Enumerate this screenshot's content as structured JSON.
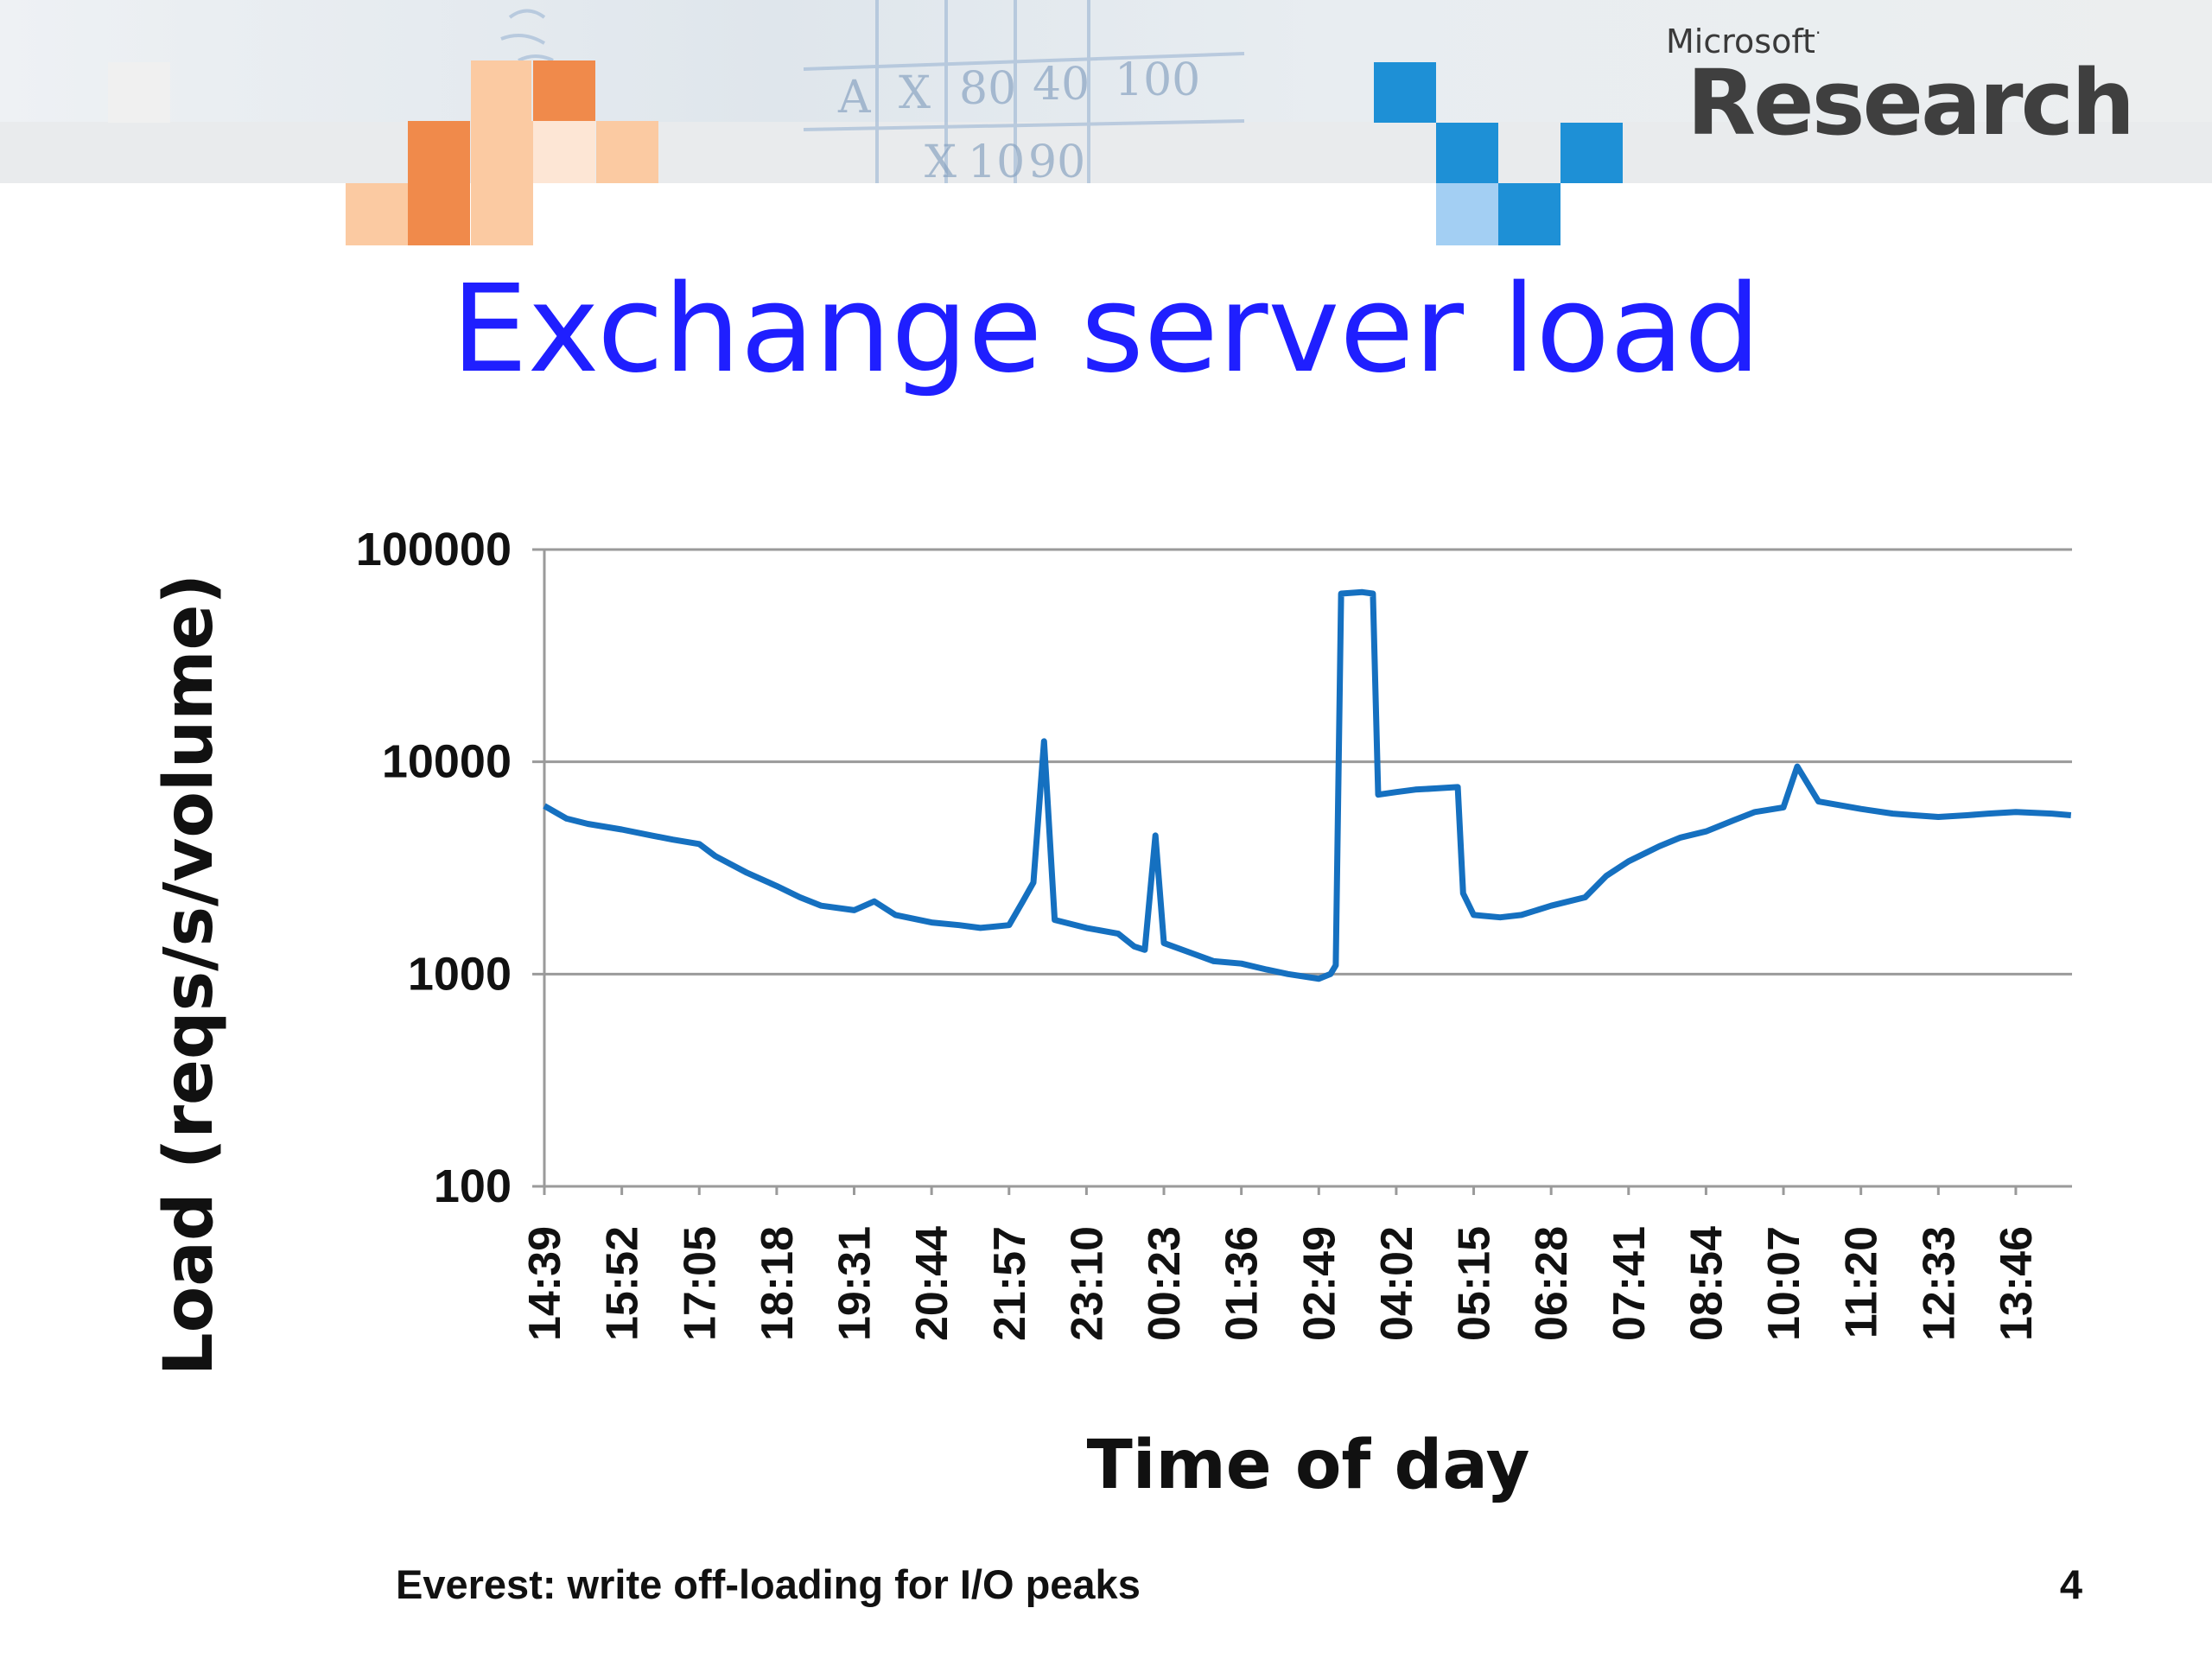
{
  "branding": {
    "company": "Microsoft",
    "division": "Research",
    "trademark_mark": "·"
  },
  "slide": {
    "title": "Exchange server load",
    "footer_text": "Everest: write off-loading for I/O peaks",
    "page_number": "4"
  },
  "colors": {
    "title": "#1f1fff",
    "series_line": "#1570c0",
    "orange_squares": "#f08a4b",
    "blue_squares": "#1e90d6",
    "gridline": "#9a9a9a"
  },
  "chart_data": {
    "type": "line",
    "title": "",
    "xlabel": "Time of day",
    "ylabel": "Load (reqs/s/volume)",
    "yscale": "log",
    "ylim": [
      100,
      100000
    ],
    "y_ticks": [
      "100",
      "1000",
      "10000",
      "100000"
    ],
    "x_tick_labels": [
      "14:39",
      "15:52",
      "17:05",
      "18:18",
      "19:31",
      "20:44",
      "21:57",
      "23:10",
      "00:23",
      "01:36",
      "02:49",
      "04:02",
      "05:15",
      "06:28",
      "07:41",
      "08:54",
      "10:07",
      "11:20",
      "12:33",
      "13:46"
    ],
    "grid": true,
    "legend": "none",
    "series": [
      {
        "x": [
          "14:39",
          "15:00",
          "15:20",
          "15:52",
          "16:20",
          "16:40",
          "17:05",
          "17:20",
          "17:50",
          "18:18",
          "18:40",
          "19:00",
          "19:31",
          "19:50",
          "20:10",
          "20:44",
          "21:10",
          "21:30",
          "21:57",
          "22:10",
          "22:20",
          "22:30",
          "22:40",
          "23:10",
          "23:40",
          "23:55",
          "00:05",
          "00:15",
          "00:23",
          "00:50",
          "01:10",
          "01:36",
          "02:00",
          "02:20",
          "02:49",
          "03:00",
          "03:05",
          "03:10",
          "03:30",
          "03:40",
          "03:45",
          "04:02",
          "04:20",
          "04:40",
          "05:00",
          "05:05",
          "05:15",
          "05:40",
          "06:00",
          "06:28",
          "07:00",
          "07:20",
          "07:41",
          "08:10",
          "08:30",
          "08:54",
          "09:20",
          "09:40",
          "10:07",
          "10:20",
          "10:40",
          "11:20",
          "11:50",
          "12:10",
          "12:33",
          "13:00",
          "13:20",
          "13:46",
          "14:20",
          "14:38"
        ],
        "y": [
          6200,
          5400,
          5100,
          4800,
          4500,
          4300,
          4100,
          3600,
          3000,
          2600,
          2300,
          2100,
          2000,
          2200,
          1900,
          1750,
          1700,
          1650,
          1700,
          2200,
          2700,
          12500,
          1800,
          1650,
          1550,
          1350,
          1300,
          4500,
          1400,
          1250,
          1150,
          1120,
          1050,
          1000,
          950,
          1000,
          1100,
          62000,
          63000,
          62000,
          7000,
          7200,
          7400,
          7500,
          7600,
          2400,
          1900,
          1850,
          1900,
          2100,
          2300,
          2900,
          3400,
          4000,
          4400,
          4700,
          5300,
          5800,
          6100,
          9500,
          6500,
          6000,
          5700,
          5600,
          5500,
          5600,
          5700,
          5800,
          5700,
          5600
        ]
      }
    ]
  }
}
